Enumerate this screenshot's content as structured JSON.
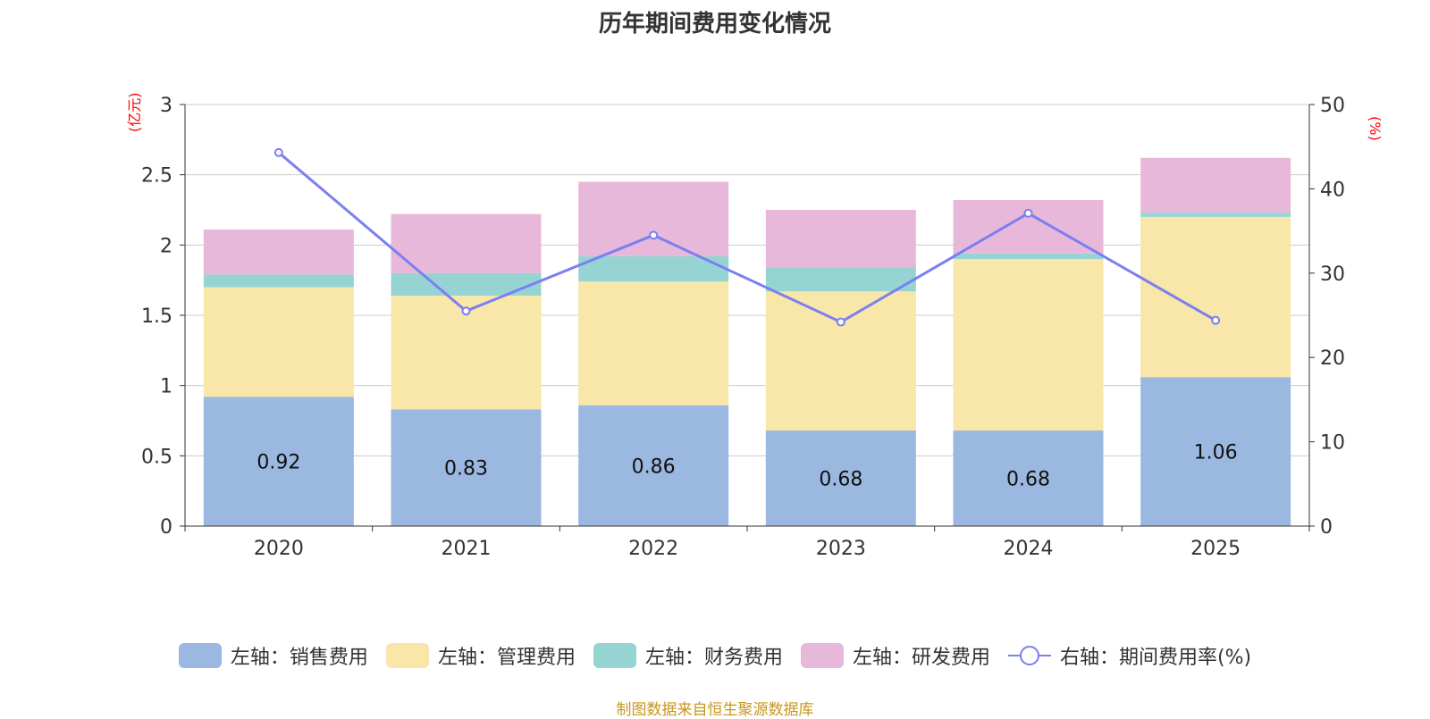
{
  "chart_data": {
    "type": "bar",
    "stacked": true,
    "title": "历年期间费用变化情况",
    "categories": [
      "2020",
      "2021",
      "2022",
      "2023",
      "2024",
      "2025"
    ],
    "left_axis": {
      "unit": "(亿元)",
      "ylim": [
        0,
        3
      ],
      "ticks": [
        "0",
        "0.5",
        "1",
        "1.5",
        "2",
        "2.5",
        "3"
      ]
    },
    "right_axis": {
      "unit": "(%)",
      "ylim": [
        0,
        50
      ],
      "ticks": [
        "0",
        "10",
        "20",
        "30",
        "40",
        "50"
      ]
    },
    "series": [
      {
        "name": "左轴：销售费用",
        "axis": "left",
        "type": "bar",
        "color": "#9bb8e0",
        "values": [
          0.92,
          0.83,
          0.86,
          0.68,
          0.68,
          1.06
        ],
        "labels": [
          "0.92",
          "0.83",
          "0.86",
          "0.68",
          "0.68",
          "1.06"
        ]
      },
      {
        "name": "左轴：管理费用",
        "axis": "left",
        "type": "bar",
        "color": "#f8e7a8",
        "values": [
          0.78,
          0.81,
          0.88,
          0.99,
          1.22,
          1.14
        ]
      },
      {
        "name": "左轴：财务费用",
        "axis": "left",
        "type": "bar",
        "color": "#96d4d4",
        "values": [
          0.09,
          0.16,
          0.18,
          0.17,
          0.04,
          0.03
        ]
      },
      {
        "name": "左轴：研发费用",
        "axis": "left",
        "type": "bar",
        "color": "#e7b8d9",
        "values": [
          0.32,
          0.42,
          0.53,
          0.41,
          0.38,
          0.39
        ]
      },
      {
        "name": "右轴：期间费用率(%)",
        "axis": "right",
        "type": "line",
        "color": "#7b7ff0",
        "values": [
          44.3,
          25.5,
          34.5,
          24.2,
          37.1,
          24.4
        ]
      }
    ],
    "legend_position": "bottom",
    "grid": true
  },
  "source": "制图数据来自恒生聚源数据库"
}
